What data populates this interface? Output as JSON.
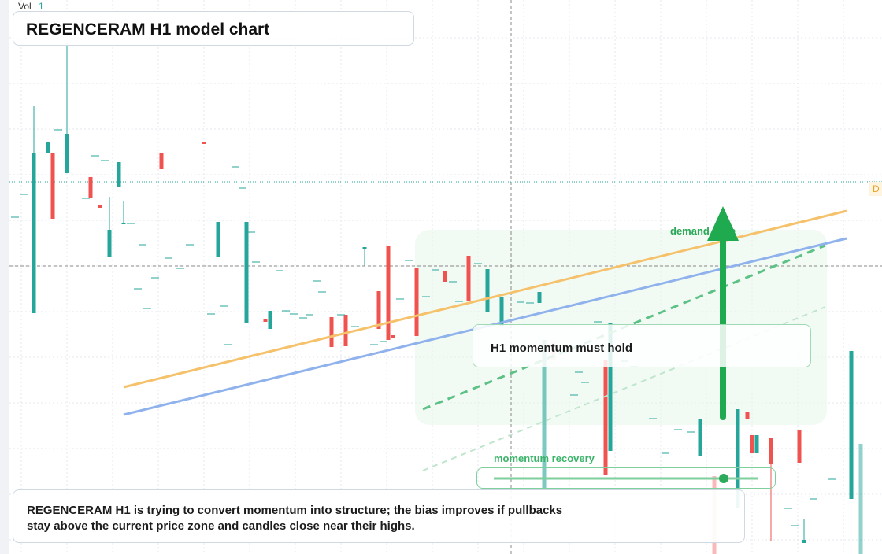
{
  "header": {
    "volume_label": "Vol",
    "volume_value": "1",
    "title": "REGENCERAM H1 model chart"
  },
  "annotations": {
    "zone": "demand zone",
    "note": "H1 momentum must hold",
    "slider": "momentum recovery",
    "edge_marker": "D"
  },
  "description": "REGENCERAM H1 is trying to convert momentum into structure; the bias improves if pullbacks stay above the current price zone and candles close near their highs."
}
